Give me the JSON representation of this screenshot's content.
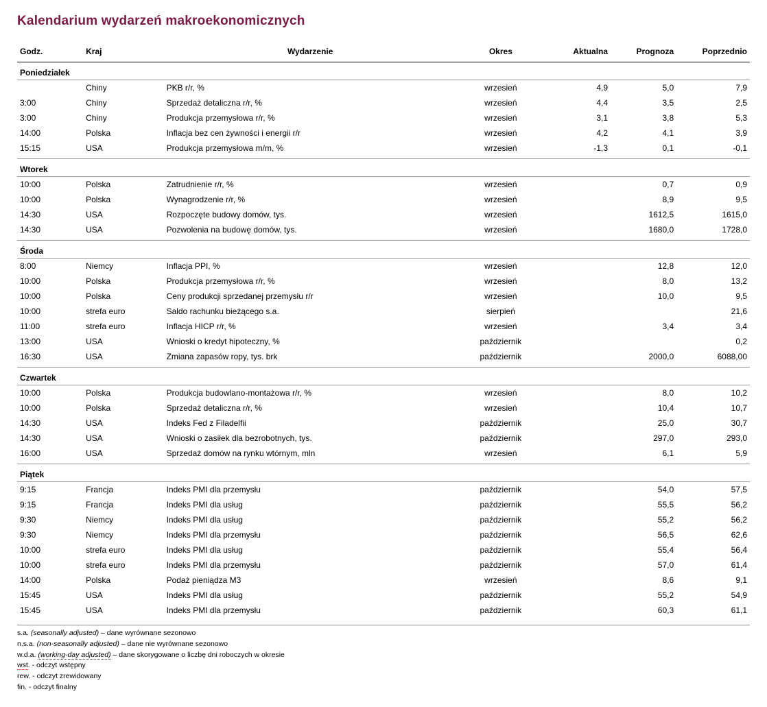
{
  "title": "Kalendarium wydarzeń makroekonomicznych",
  "columns": {
    "godz": "Godz.",
    "kraj": "Kraj",
    "wydarzenie": "Wydarzenie",
    "okres": "Okres",
    "aktualna": "Aktualna",
    "prognoza": "Prognoza",
    "poprzednio": "Poprzednio"
  },
  "days": [
    {
      "name": "Poniedziałek",
      "rows": [
        {
          "godz": "",
          "kraj": "Chiny",
          "wyd": "PKB r/r, %",
          "okres": "wrzesień",
          "akt": "4,9",
          "prog": "5,0",
          "poprz": "7,9"
        },
        {
          "godz": "3:00",
          "kraj": "Chiny",
          "wyd": "Sprzedaż detaliczna r/r, %",
          "okres": "wrzesień",
          "akt": "4,4",
          "prog": "3,5",
          "poprz": "2,5"
        },
        {
          "godz": "3:00",
          "kraj": "Chiny",
          "wyd": "Produkcja przemysłowa r/r, %",
          "okres": "wrzesień",
          "akt": "3,1",
          "prog": "3,8",
          "poprz": "5,3"
        },
        {
          "godz": "14:00",
          "kraj": "Polska",
          "wyd": "Inflacja bez cen żywności i energii r/r",
          "okres": "wrzesień",
          "akt": "4,2",
          "prog": "4,1",
          "poprz": "3,9"
        },
        {
          "godz": "15:15",
          "kraj": "USA",
          "wyd": "Produkcja przemysłowa m/m, %",
          "okres": "wrzesień",
          "akt": "-1,3",
          "prog": "0,1",
          "poprz": "-0,1"
        }
      ]
    },
    {
      "name": "Wtorek",
      "rows": [
        {
          "godz": "10:00",
          "kraj": "Polska",
          "wyd": "Zatrudnienie r/r, %",
          "okres": "wrzesień",
          "akt": "",
          "prog": "0,7",
          "poprz": "0,9"
        },
        {
          "godz": "10:00",
          "kraj": "Polska",
          "wyd": "Wynagrodzenie r/r, %",
          "okres": "wrzesień",
          "akt": "",
          "prog": "8,9",
          "poprz": "9,5"
        },
        {
          "godz": "14:30",
          "kraj": "USA",
          "wyd": "Rozpoczęte budowy domów, tys.",
          "okres": "wrzesień",
          "akt": "",
          "prog": "1612,5",
          "poprz": "1615,0"
        },
        {
          "godz": "14:30",
          "kraj": "USA",
          "wyd": "Pozwolenia na budowę domów, tys.",
          "okres": "wrzesień",
          "akt": "",
          "prog": "1680,0",
          "poprz": "1728,0"
        }
      ]
    },
    {
      "name": "Środa",
      "rows": [
        {
          "godz": "8:00",
          "kraj": "Niemcy",
          "wyd": "Inflacja PPI, %",
          "okres": "wrzesień",
          "akt": "",
          "prog": "12,8",
          "poprz": "12,0"
        },
        {
          "godz": "10:00",
          "kraj": "Polska",
          "wyd": "Produkcja przemysłowa r/r, %",
          "okres": "wrzesień",
          "akt": "",
          "prog": "8,0",
          "poprz": "13,2"
        },
        {
          "godz": "10:00",
          "kraj": "Polska",
          "wyd": "Ceny produkcji sprzedanej przemysłu r/r",
          "okres": "wrzesień",
          "akt": "",
          "prog": "10,0",
          "poprz": "9,5"
        },
        {
          "godz": "10:00",
          "kraj": "strefa euro",
          "wyd": "Saldo rachunku bieżącego s.a.",
          "okres": "sierpień",
          "akt": "",
          "prog": "",
          "poprz": "21,6"
        },
        {
          "godz": "11:00",
          "kraj": "strefa euro",
          "wyd": "Inflacja HICP r/r, %",
          "okres": "wrzesień",
          "akt": "",
          "prog": "3,4",
          "poprz": "3,4"
        },
        {
          "godz": "13:00",
          "kraj": "USA",
          "wyd": "Wnioski o kredyt hipoteczny, %",
          "okres": "październik",
          "akt": "",
          "prog": "",
          "poprz": "0,2"
        },
        {
          "godz": "16:30",
          "kraj": "USA",
          "wyd": "Zmiana zapasów ropy, tys. brk",
          "okres": "październik",
          "akt": "",
          "prog": "2000,0",
          "poprz": "6088,00"
        }
      ]
    },
    {
      "name": "Czwartek",
      "rows": [
        {
          "godz": "10:00",
          "kraj": "Polska",
          "wyd": "Produkcja budowlano-montażowa r/r, %",
          "okres": "wrzesień",
          "akt": "",
          "prog": "8,0",
          "poprz": "10,2"
        },
        {
          "godz": "10:00",
          "kraj": "Polska",
          "wyd": "Sprzedaż detaliczna r/r, %",
          "okres": "wrzesień",
          "akt": "",
          "prog": "10,4",
          "poprz": "10,7"
        },
        {
          "godz": "14:30",
          "kraj": "USA",
          "wyd": "Indeks Fed z Filadelfii",
          "okres": "październik",
          "akt": "",
          "prog": "25,0",
          "poprz": "30,7"
        },
        {
          "godz": "14:30",
          "kraj": "USA",
          "wyd": "Wnioski o zasiłek dla bezrobotnych, tys.",
          "okres": "październik",
          "akt": "",
          "prog": "297,0",
          "poprz": "293,0"
        },
        {
          "godz": "16:00",
          "kraj": "USA",
          "wyd": "Sprzedaż domów na rynku wtórnym, mln",
          "okres": "wrzesień",
          "akt": "",
          "prog": "6,1",
          "poprz": "5,9"
        }
      ]
    },
    {
      "name": "Piątek",
      "rows": [
        {
          "godz": "9:15",
          "kraj": "Francja",
          "wyd": "Indeks PMI dla przemysłu",
          "okres": "październik",
          "akt": "",
          "prog": "54,0",
          "poprz": "57,5"
        },
        {
          "godz": "9:15",
          "kraj": "Francja",
          "wyd": "Indeks PMI dla usług",
          "okres": "październik",
          "akt": "",
          "prog": "55,5",
          "poprz": "56,2"
        },
        {
          "godz": "9:30",
          "kraj": "Niemcy",
          "wyd": "Indeks PMI dla usług",
          "okres": "październik",
          "akt": "",
          "prog": "55,2",
          "poprz": "56,2"
        },
        {
          "godz": "9:30",
          "kraj": "Niemcy",
          "wyd": "Indeks PMI dla przemysłu",
          "okres": "październik",
          "akt": "",
          "prog": "56,5",
          "poprz": "62,6"
        },
        {
          "godz": "10:00",
          "kraj": "strefa euro",
          "wyd": "Indeks PMI dla usług",
          "okres": "październik",
          "akt": "",
          "prog": "55,4",
          "poprz": "56,4"
        },
        {
          "godz": "10:00",
          "kraj": "strefa euro",
          "wyd": "Indeks PMI dla przemysłu",
          "okres": "październik",
          "akt": "",
          "prog": "57,0",
          "poprz": "61,4"
        },
        {
          "godz": "14:00",
          "kraj": "Polska",
          "wyd": "Podaż pieniądza M3",
          "okres": "wrzesień",
          "akt": "",
          "prog": "8,6",
          "poprz": "9,1"
        },
        {
          "godz": "15:45",
          "kraj": "USA",
          "wyd": "Indeks PMI dla usług",
          "okres": "październik",
          "akt": "",
          "prog": "55,2",
          "poprz": "54,9"
        },
        {
          "godz": "15:45",
          "kraj": "USA",
          "wyd": "Indeks PMI dla przemysłu",
          "okres": "październik",
          "akt": "",
          "prog": "60,3",
          "poprz": "61,1"
        }
      ]
    }
  ],
  "footnotes": {
    "sa_abbr": "s.a.",
    "sa_full": "(seasonally adjusted)",
    "sa_desc": " – dane wyrównane sezonowo",
    "nsa_abbr": "n.s.a.",
    "nsa_full": "(non-seasonally adjusted)",
    "nsa_desc": " – dane nie wyrównane sezonowo",
    "wda_abbr": "w.d.a.",
    "wda_full": "(working-day adjusted)",
    "wda_desc": " – dane skorygowane o liczbę dni roboczych w okresie",
    "wst_abbr": "wst",
    "wst_desc": ". - odczyt wstępny",
    "rew": "rew. - odczyt zrewidowany",
    "fin": "fin. - odczyt finalny"
  }
}
